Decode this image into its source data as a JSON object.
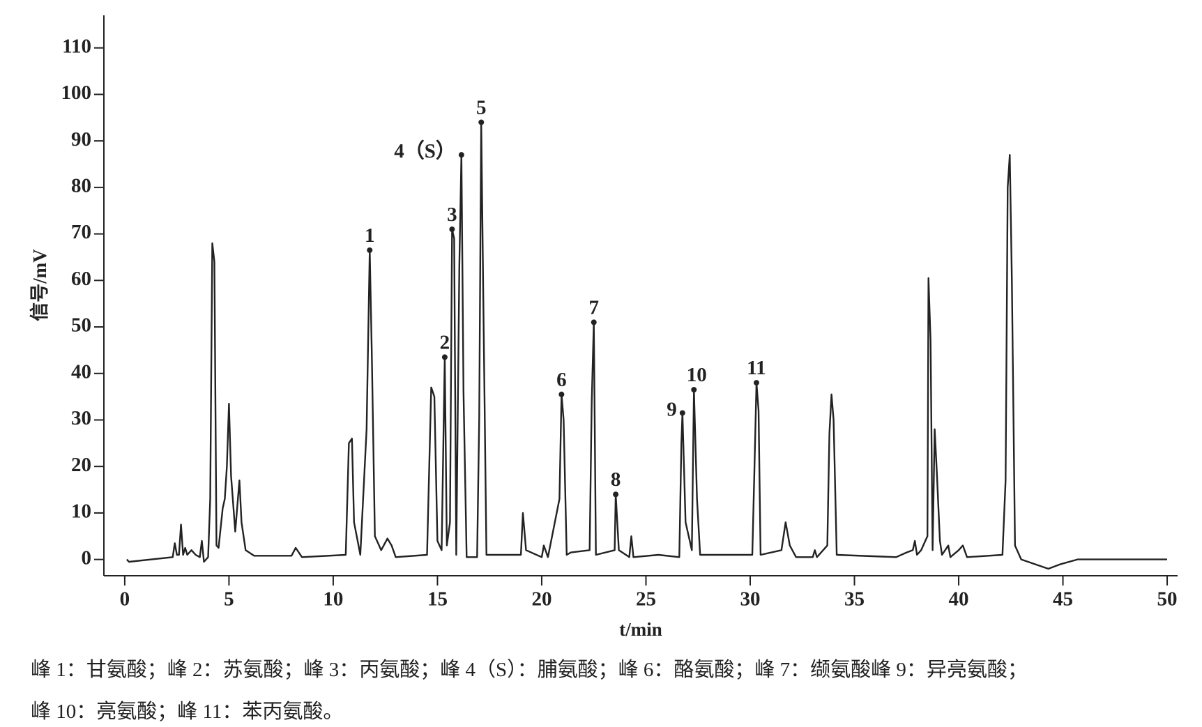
{
  "chart_data": {
    "type": "line",
    "x_label": "t/min",
    "y_label": "信号/mV",
    "color": "#222222",
    "xlim": [
      -1,
      50.5
    ],
    "ylim": [
      -3.5,
      117
    ],
    "xticks": [
      0,
      5,
      10,
      15,
      20,
      25,
      30,
      35,
      40,
      45,
      50
    ],
    "yticks": [
      0,
      10,
      20,
      30,
      40,
      50,
      60,
      70,
      80,
      90,
      100,
      110
    ],
    "x": [
      0.1,
      0.2,
      2.3,
      2.4,
      2.5,
      2.6,
      2.7,
      2.8,
      2.9,
      3.0,
      3.2,
      3.4,
      3.6,
      3.7,
      3.8,
      4.0,
      4.1,
      4.2,
      4.3,
      4.4,
      4.5,
      4.7,
      4.8,
      4.9,
      5.0,
      5.1,
      5.3,
      5.5,
      5.6,
      5.8,
      6.2,
      8.0,
      8.2,
      8.5,
      10.6,
      10.75,
      10.9,
      11.0,
      11.3,
      11.6,
      11.75,
      11.85,
      12.0,
      12.3,
      12.6,
      12.8,
      13.0,
      14.5,
      14.7,
      14.85,
      15.0,
      15.2,
      15.35,
      15.45,
      15.6,
      15.7,
      15.8,
      15.9,
      16.05,
      16.15,
      16.25,
      16.4,
      16.9,
      17.0,
      17.1,
      17.2,
      17.35,
      19.0,
      19.1,
      19.25,
      20.0,
      20.1,
      20.3,
      20.85,
      20.95,
      21.05,
      21.2,
      21.4,
      22.3,
      22.4,
      22.5,
      22.6,
      23.5,
      23.55,
      23.7,
      24.2,
      24.3,
      24.4,
      25.6,
      26.6,
      26.7,
      26.75,
      26.9,
      27.2,
      27.3,
      27.45,
      27.6,
      30.1,
      30.2,
      30.3,
      30.4,
      30.5,
      31.5,
      31.7,
      31.9,
      32.2,
      33.0,
      33.1,
      33.2,
      33.7,
      33.8,
      33.9,
      34.0,
      34.15,
      37.0,
      37.5,
      37.8,
      37.9,
      38.0,
      38.2,
      38.5,
      38.55,
      38.65,
      38.75,
      38.85,
      38.95,
      39.1,
      39.2,
      39.5,
      39.6,
      40.0,
      40.2,
      40.4,
      42.1,
      42.25,
      42.35,
      42.45,
      42.55,
      42.7,
      43.0,
      44.3,
      44.9,
      45.7,
      50.0
    ],
    "values": [
      0,
      -0.5,
      0.5,
      3.5,
      1,
      1,
      7.5,
      1,
      2.5,
      1,
      2,
      1,
      0.5,
      4,
      -0.5,
      0.5,
      13,
      68,
      64,
      3,
      2.5,
      11,
      13,
      20,
      33.5,
      18,
      6,
      17,
      8,
      2,
      0.8,
      0.8,
      2.5,
      0.5,
      1,
      25,
      26,
      8,
      1,
      28,
      66.5,
      44,
      5,
      2,
      4.5,
      3,
      0.5,
      1,
      37,
      35,
      4,
      2,
      43.5,
      3,
      8,
      71,
      69,
      1,
      63,
      87,
      36,
      0.5,
      0.5,
      30,
      94,
      56,
      1,
      1,
      10,
      2,
      0.5,
      3,
      0.5,
      13,
      35.5,
      30,
      1,
      1.5,
      2,
      34,
      51,
      1,
      2,
      14,
      2,
      0.5,
      5,
      0.5,
      1,
      0.5,
      25,
      31.5,
      8,
      2,
      36.5,
      13,
      1,
      1,
      19,
      38,
      32,
      1,
      2,
      8,
      3,
      0.5,
      0.5,
      2,
      0.5,
      3,
      27,
      35.5,
      30,
      1,
      0.5,
      1.5,
      2,
      4,
      1,
      2,
      5,
      60.5,
      47,
      2,
      28,
      19,
      4,
      1,
      3,
      0.5,
      2,
      3,
      0.5,
      1,
      17,
      80,
      87,
      60,
      3,
      0,
      -2,
      -1,
      0,
      0
    ],
    "annotations": [
      {
        "text": "1",
        "x": 11.75,
        "y": 66.5
      },
      {
        "text": "2",
        "x": 15.35,
        "y": 43.5
      },
      {
        "text": "3",
        "x": 15.7,
        "y": 71
      },
      {
        "text": "4（S）",
        "x": 16.15,
        "y": 87
      },
      {
        "text": "5",
        "x": 17.1,
        "y": 94
      },
      {
        "text": "6",
        "x": 20.95,
        "y": 35.5
      },
      {
        "text": "7",
        "x": 22.5,
        "y": 51
      },
      {
        "text": "8",
        "x": 23.55,
        "y": 14
      },
      {
        "text": "9",
        "x": 26.75,
        "y": 31.5
      },
      {
        "text": "10",
        "x": 27.3,
        "y": 36.5
      },
      {
        "text": "11",
        "x": 30.3,
        "y": 38
      }
    ],
    "caption": [
      "峰 1：甘氨酸；峰 2：苏氨酸；峰 3：丙氨酸；峰 4（S）：脯氨酸；峰 6：酪氨酸；峰 7：缬氨酸峰 9：异亮氨酸；",
      "峰 10：亮氨酸；峰 11：苯丙氨酸。"
    ]
  }
}
